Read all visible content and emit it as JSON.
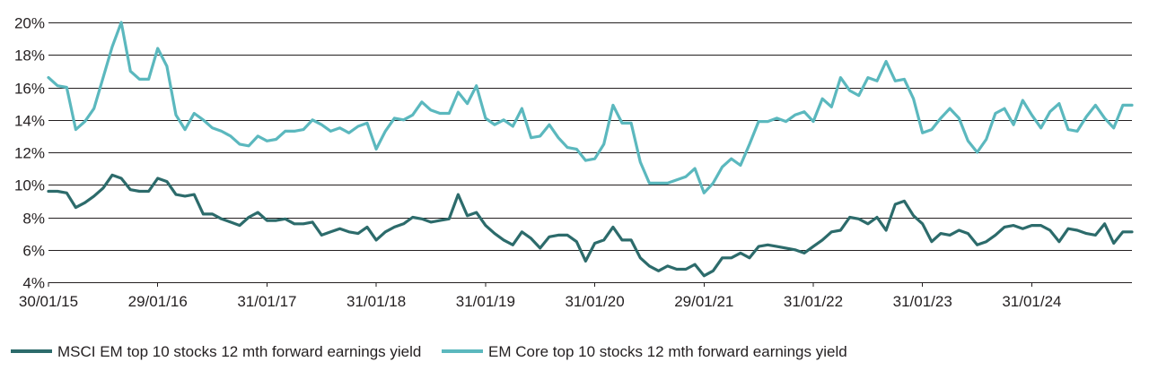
{
  "chart_data": {
    "type": "line",
    "title": "",
    "xlabel": "",
    "ylabel": "",
    "ylim": [
      0.04,
      0.2
    ],
    "y_ticks": [
      {
        "value": 0.04,
        "label": "4%"
      },
      {
        "value": 0.06,
        "label": "6%"
      },
      {
        "value": 0.08,
        "label": "8%"
      },
      {
        "value": 0.1,
        "label": "10%"
      },
      {
        "value": 0.12,
        "label": "12%"
      },
      {
        "value": 0.14,
        "label": "14%"
      },
      {
        "value": 0.16,
        "label": "16%"
      },
      {
        "value": 0.18,
        "label": "18%"
      },
      {
        "value": 0.2,
        "label": "20%"
      }
    ],
    "x_ticks": [
      "30/01/15",
      "29/01/16",
      "31/01/17",
      "31/01/18",
      "31/01/19",
      "31/01/20",
      "29/01/21",
      "31/01/22",
      "31/01/23",
      "31/01/24"
    ],
    "grid": true,
    "legend_position": "bottom",
    "colors": {
      "msci": "#2c6b6b",
      "core": "#5bb8be",
      "grid": "#231f20",
      "text": "#231f20"
    },
    "x": [
      "2015-01",
      "2015-02",
      "2015-03",
      "2015-04",
      "2015-05",
      "2015-06",
      "2015-07",
      "2015-08",
      "2015-09",
      "2015-10",
      "2015-11",
      "2015-12",
      "2016-01",
      "2016-02",
      "2016-03",
      "2016-04",
      "2016-05",
      "2016-06",
      "2016-07",
      "2016-08",
      "2016-09",
      "2016-10",
      "2016-11",
      "2016-12",
      "2017-01",
      "2017-02",
      "2017-03",
      "2017-04",
      "2017-05",
      "2017-06",
      "2017-07",
      "2017-08",
      "2017-09",
      "2017-10",
      "2017-11",
      "2017-12",
      "2018-01",
      "2018-02",
      "2018-03",
      "2018-04",
      "2018-05",
      "2018-06",
      "2018-07",
      "2018-08",
      "2018-09",
      "2018-10",
      "2018-11",
      "2018-12",
      "2019-01",
      "2019-02",
      "2019-03",
      "2019-04",
      "2019-05",
      "2019-06",
      "2019-07",
      "2019-08",
      "2019-09",
      "2019-10",
      "2019-11",
      "2019-12",
      "2020-01",
      "2020-02",
      "2020-03",
      "2020-04",
      "2020-05",
      "2020-06",
      "2020-07",
      "2020-08",
      "2020-09",
      "2020-10",
      "2020-11",
      "2020-12",
      "2021-01",
      "2021-02",
      "2021-03",
      "2021-04",
      "2021-05",
      "2021-06",
      "2021-07",
      "2021-08",
      "2021-09",
      "2021-10",
      "2021-11",
      "2021-12",
      "2022-01",
      "2022-02",
      "2022-03",
      "2022-04",
      "2022-05",
      "2022-06",
      "2022-07",
      "2022-08",
      "2022-09",
      "2022-10",
      "2022-11",
      "2022-12",
      "2023-01",
      "2023-02",
      "2023-03",
      "2023-04",
      "2023-05",
      "2023-06",
      "2023-07",
      "2023-08",
      "2023-09",
      "2023-10",
      "2023-11",
      "2023-12",
      "2024-01",
      "2024-02",
      "2024-03",
      "2024-04",
      "2024-05",
      "2024-06",
      "2024-07",
      "2024-08",
      "2024-09",
      "2024-10",
      "2024-11",
      "2024-12"
    ],
    "series": [
      {
        "name": "MSCI EM top 10 stocks 12 mth forward earnings yield",
        "color": "#2c6b6b",
        "values": [
          0.096,
          0.096,
          0.095,
          0.086,
          0.089,
          0.093,
          0.098,
          0.106,
          0.104,
          0.097,
          0.096,
          0.096,
          0.104,
          0.102,
          0.094,
          0.093,
          0.094,
          0.082,
          0.082,
          0.079,
          0.077,
          0.075,
          0.08,
          0.083,
          0.078,
          0.078,
          0.079,
          0.076,
          0.076,
          0.077,
          0.069,
          0.071,
          0.073,
          0.071,
          0.07,
          0.074,
          0.066,
          0.071,
          0.074,
          0.076,
          0.08,
          0.079,
          0.077,
          0.078,
          0.079,
          0.094,
          0.081,
          0.083,
          0.075,
          0.07,
          0.066,
          0.063,
          0.071,
          0.067,
          0.061,
          0.068,
          0.069,
          0.069,
          0.065,
          0.053,
          0.064,
          0.066,
          0.074,
          0.066,
          0.066,
          0.055,
          0.05,
          0.047,
          0.05,
          0.048,
          0.048,
          0.051,
          0.044,
          0.047,
          0.055,
          0.055,
          0.058,
          0.055,
          0.062,
          0.063,
          0.062,
          0.061,
          0.06,
          0.058,
          0.062,
          0.066,
          0.071,
          0.072,
          0.08,
          0.079,
          0.076,
          0.08,
          0.072,
          0.088,
          0.09,
          0.081,
          0.076,
          0.065,
          0.07,
          0.069,
          0.072,
          0.07,
          0.063,
          0.065,
          0.069,
          0.074,
          0.075,
          0.073,
          0.075,
          0.075,
          0.072,
          0.065,
          0.073,
          0.072,
          0.07,
          0.069,
          0.076,
          0.064,
          0.071,
          0.071
        ]
      },
      {
        "name": "EM Core top 10 stocks 12 mth forward earnings yield",
        "color": "#5bb8be",
        "values": [
          0.166,
          0.161,
          0.16,
          0.134,
          0.139,
          0.147,
          0.166,
          0.185,
          0.2,
          0.17,
          0.165,
          0.165,
          0.184,
          0.173,
          0.143,
          0.134,
          0.144,
          0.14,
          0.135,
          0.133,
          0.13,
          0.125,
          0.124,
          0.13,
          0.127,
          0.128,
          0.133,
          0.133,
          0.134,
          0.14,
          0.137,
          0.133,
          0.135,
          0.132,
          0.136,
          0.138,
          0.122,
          0.133,
          0.141,
          0.14,
          0.143,
          0.151,
          0.146,
          0.144,
          0.144,
          0.157,
          0.15,
          0.161,
          0.141,
          0.137,
          0.14,
          0.136,
          0.147,
          0.129,
          0.13,
          0.137,
          0.129,
          0.123,
          0.122,
          0.115,
          0.116,
          0.125,
          0.149,
          0.138,
          0.138,
          0.114,
          0.101,
          0.101,
          0.101,
          0.103,
          0.105,
          0.11,
          0.095,
          0.101,
          0.111,
          0.116,
          0.112,
          0.125,
          0.139,
          0.139,
          0.141,
          0.139,
          0.143,
          0.145,
          0.139,
          0.153,
          0.148,
          0.166,
          0.158,
          0.155,
          0.166,
          0.164,
          0.176,
          0.164,
          0.165,
          0.153,
          0.132,
          0.134,
          0.141,
          0.147,
          0.141,
          0.127,
          0.12,
          0.128,
          0.144,
          0.147,
          0.137,
          0.152,
          0.143,
          0.135,
          0.145,
          0.15,
          0.134,
          0.133,
          0.142,
          0.149,
          0.141,
          0.135,
          0.149,
          0.149
        ]
      }
    ]
  }
}
